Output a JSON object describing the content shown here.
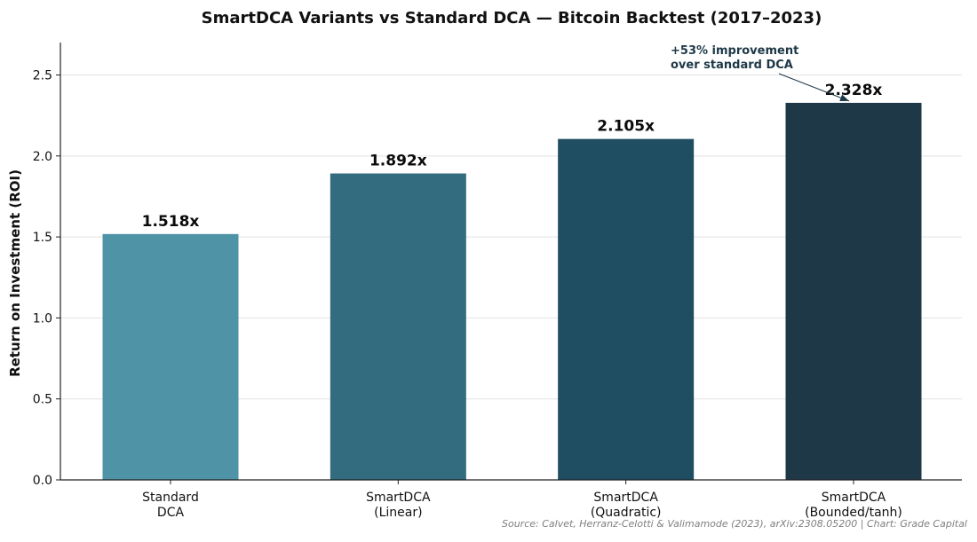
{
  "chart_data": {
    "type": "bar",
    "title": "SmartDCA Variants vs Standard DCA — Bitcoin Backtest (2017–2023)",
    "xlabel": "",
    "ylabel": "Return on Investment (ROI)",
    "ylim": [
      0,
      2.7
    ],
    "yticks": [
      0.0,
      0.5,
      1.0,
      1.5,
      2.0,
      2.5
    ],
    "ytick_labels": [
      "0.0",
      "0.5",
      "1.0",
      "1.5",
      "2.0",
      "2.5"
    ],
    "grid": "horizontal",
    "categories": [
      [
        "Standard",
        "DCA"
      ],
      [
        "SmartDCA",
        "(Linear)"
      ],
      [
        "SmartDCA",
        "(Quadratic)"
      ],
      [
        "SmartDCA",
        "(Bounded/tanh)"
      ]
    ],
    "values": [
      1.518,
      1.892,
      2.105,
      2.328
    ],
    "value_labels": [
      "1.518x",
      "1.892x",
      "2.105x",
      "2.328x"
    ],
    "bar_colors": [
      "#4e93a6",
      "#336b7f",
      "#1f4e63",
      "#1e3847"
    ],
    "annotation": {
      "lines": [
        "+53% improvement",
        "over standard DCA"
      ],
      "target_index": 3,
      "color": "#1e3847"
    },
    "source": "Source: Calvet, Herranz-Celotti & Valimamode (2023), arXiv:2308.05200 | Chart: Grade Capital"
  }
}
